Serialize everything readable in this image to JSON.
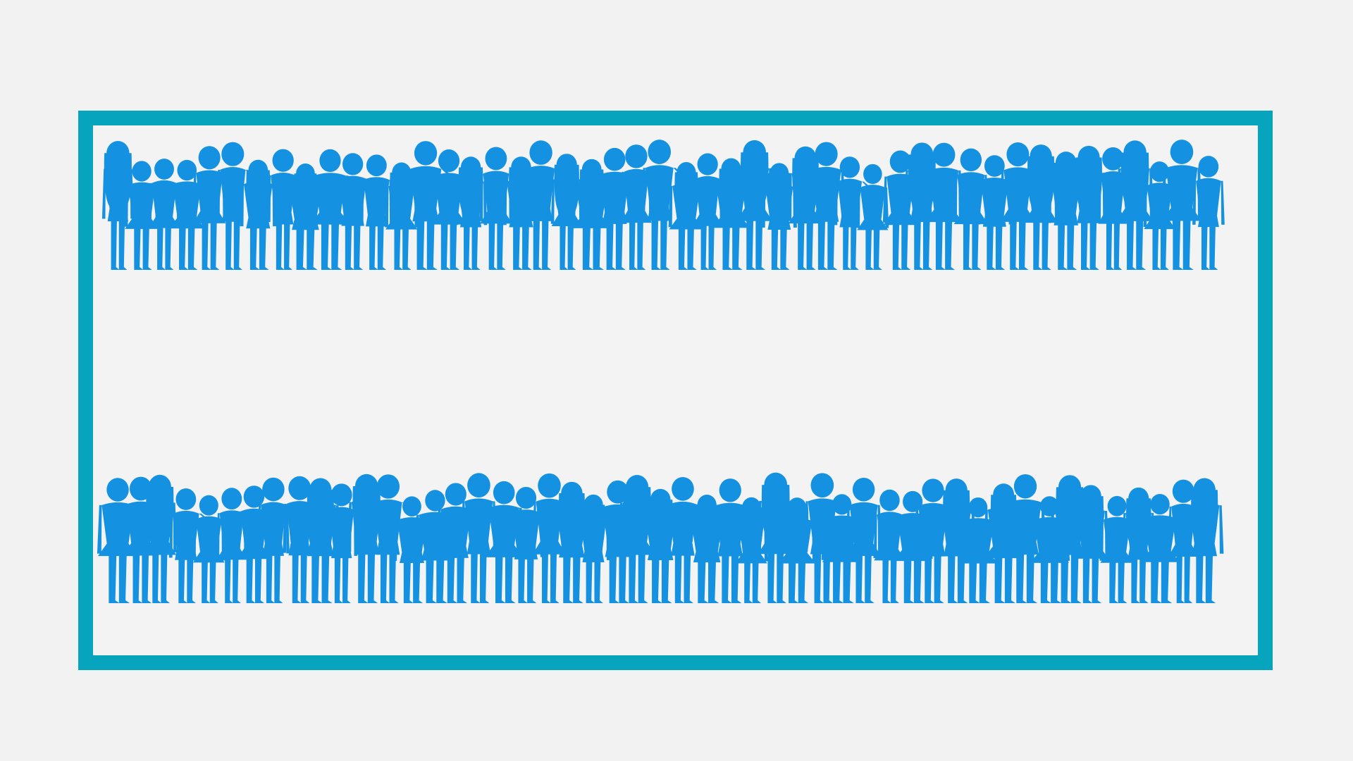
{
  "scene": {
    "background_color": "#f2f2f2",
    "frame_color": "#07a4bd",
    "frame_fill": "#f3f3f3",
    "silhouette_color": "#1591e2",
    "rows": [
      {
        "name": "top-row",
        "figure_count": 47
      },
      {
        "name": "bottom-row",
        "figure_count": 49
      }
    ]
  }
}
